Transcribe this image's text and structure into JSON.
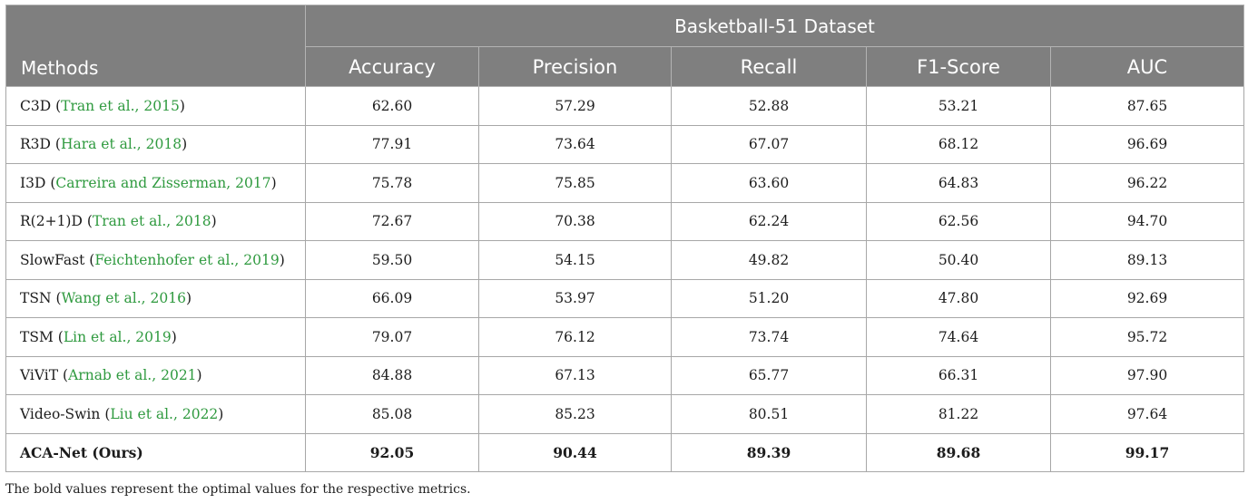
{
  "table": {
    "dataset_header": "Basketball-51 Dataset",
    "methods_header": "Methods",
    "metric_headers": [
      "Accuracy",
      "Precision",
      "Recall",
      "F1-Score",
      "AUC"
    ],
    "rows": [
      {
        "method": "C3D",
        "open": "(",
        "cite": "Tran et al., 2015",
        "close": ")",
        "values": [
          "62.60",
          "57.29",
          "52.88",
          "53.21",
          "87.65"
        ]
      },
      {
        "method": "R3D",
        "open": "(",
        "cite": "Hara et al., 2018",
        "close": ")",
        "values": [
          "77.91",
          "73.64",
          "67.07",
          "68.12",
          "96.69"
        ]
      },
      {
        "method": "I3D",
        "open": "(",
        "cite": "Carreira and Zisserman, 2017",
        "close": ")",
        "values": [
          "75.78",
          "75.85",
          "63.60",
          "64.83",
          "96.22"
        ]
      },
      {
        "method": "R(2+1)D",
        "open": "(",
        "cite": "Tran et al., 2018",
        "close": ")",
        "values": [
          "72.67",
          "70.38",
          "62.24",
          "62.56",
          "94.70"
        ]
      },
      {
        "method": "SlowFast",
        "open": "(",
        "cite": "Feichtenhofer et al., 2019",
        "close": ")",
        "values": [
          "59.50",
          "54.15",
          "49.82",
          "50.40",
          "89.13"
        ]
      },
      {
        "method": "TSN",
        "open": "(",
        "cite": "Wang et al., 2016",
        "close": ")",
        "values": [
          "66.09",
          "53.97",
          "51.20",
          "47.80",
          "92.69"
        ]
      },
      {
        "method": "TSM",
        "open": "(",
        "cite": "Lin et al., 2019",
        "close": ")",
        "values": [
          "79.07",
          "76.12",
          "73.74",
          "74.64",
          "95.72"
        ]
      },
      {
        "method": "ViViT",
        "open": "(",
        "cite": "Arnab et al., 2021",
        "close": ")",
        "values": [
          "84.88",
          "67.13",
          "65.77",
          "66.31",
          "97.90"
        ]
      },
      {
        "method": "Video-Swin",
        "open": "(",
        "cite": "Liu et al., 2022",
        "close": ")",
        "values": [
          "85.08",
          "85.23",
          "80.51",
          "81.22",
          "97.64"
        ]
      }
    ],
    "best_row": {
      "method": "ACA-Net (Ours)",
      "values": [
        "92.05",
        "90.44",
        "89.39",
        "89.68",
        "99.17"
      ]
    }
  },
  "footnote": "The bold values represent the optimal values for the respective metrics.",
  "colors": {
    "header_bg": "#7f7f7f",
    "header_text": "#ffffff",
    "citation": "#2f9a3f",
    "border": "#a7a7a7"
  }
}
